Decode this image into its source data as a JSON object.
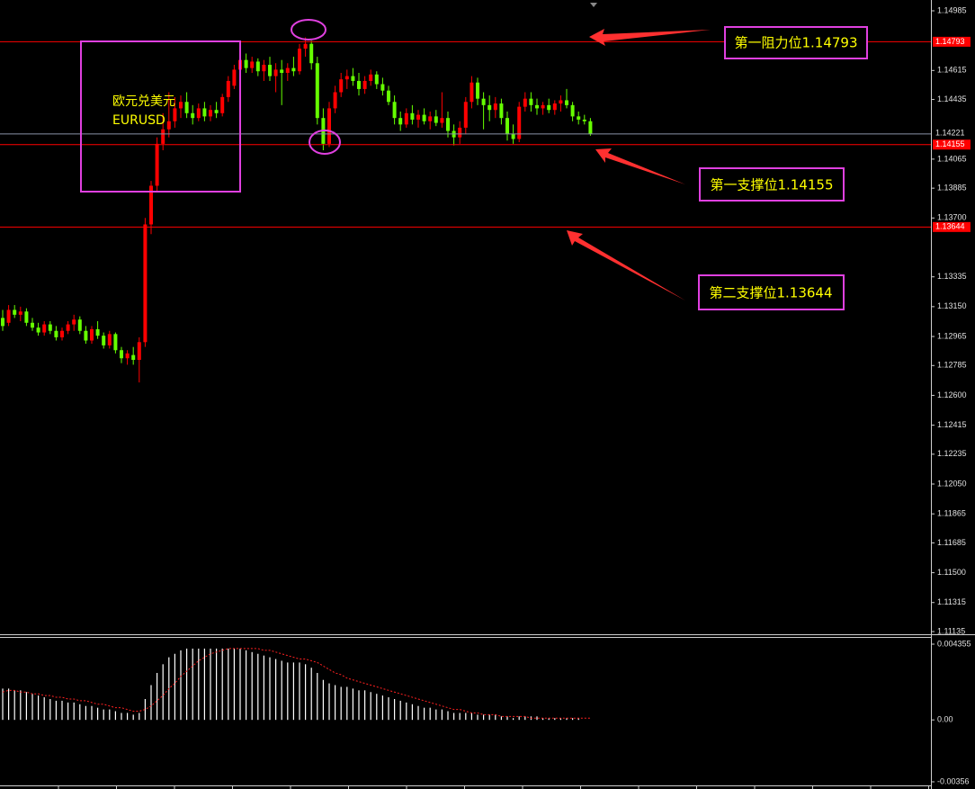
{
  "chart_data": [
    {
      "type": "candlestick",
      "title": "欧元兑美元",
      "subtitle": "EURUSD",
      "ylim": [
        1.11135,
        1.14985
      ],
      "yticks": [
        1.14985,
        1.14615,
        1.14435,
        1.14065,
        1.13885,
        {
          "value": 1.137,
          "label": "1.13700"
        },
        1.13335,
        {
          "value": 1.1315,
          "label": "1.13150"
        },
        1.12965,
        1.12785,
        {
          "value": 1.126,
          "label": "1.12600"
        },
        1.12415,
        1.12235,
        {
          "value": 1.1205,
          "label": "1.12050"
        },
        1.11865,
        1.11685,
        {
          "value": 1.115,
          "label": "1.11500"
        },
        1.11315,
        1.11135
      ],
      "up_color": "#ff0000",
      "down_color": "#66ff00",
      "candles": [
        [
          1.1308,
          1.1313,
          1.13,
          1.1303
        ],
        [
          1.1305,
          1.1316,
          1.1303,
          1.1313
        ],
        [
          1.1313,
          1.1316,
          1.1308,
          1.131
        ],
        [
          1.131,
          1.1315,
          1.1306,
          1.1312
        ],
        [
          1.1312,
          1.1314,
          1.1303,
          1.1305
        ],
        [
          1.1305,
          1.1308,
          1.13,
          1.1302
        ],
        [
          1.1302,
          1.1305,
          1.1297,
          1.1299
        ],
        [
          1.1299,
          1.1306,
          1.1297,
          1.1304
        ],
        [
          1.1304,
          1.1306,
          1.1298,
          1.13
        ],
        [
          1.13,
          1.1303,
          1.1294,
          1.1296
        ],
        [
          1.1296,
          1.1302,
          1.1294,
          1.13
        ],
        [
          1.13,
          1.1306,
          1.1298,
          1.1304
        ],
        [
          1.1304,
          1.131,
          1.13,
          1.1307
        ],
        [
          1.1307,
          1.1309,
          1.1298,
          1.13
        ],
        [
          1.13,
          1.1303,
          1.1292,
          1.1294
        ],
        [
          1.1294,
          1.1303,
          1.1292,
          1.1301
        ],
        [
          1.1301,
          1.1306,
          1.1295,
          1.1297
        ],
        [
          1.1297,
          1.1299,
          1.1289,
          1.1291
        ],
        [
          1.1291,
          1.13,
          1.1289,
          1.1298
        ],
        [
          1.1298,
          1.1299,
          1.1286,
          1.1288
        ],
        [
          1.1288,
          1.129,
          1.128,
          1.1283
        ],
        [
          1.1283,
          1.1288,
          1.1279,
          1.1286
        ],
        [
          1.1285,
          1.129,
          1.1279,
          1.1282
        ],
        [
          1.1282,
          1.1296,
          1.1268,
          1.1293
        ],
        [
          1.1293,
          1.137,
          1.129,
          1.1366
        ],
        [
          1.1366,
          1.1393,
          1.136,
          1.139
        ],
        [
          1.139,
          1.142,
          1.1386,
          1.1416
        ],
        [
          1.1416,
          1.1435,
          1.1412,
          1.1425
        ],
        [
          1.1425,
          1.1448,
          1.142,
          1.143
        ],
        [
          1.143,
          1.1445,
          1.1426,
          1.1438
        ],
        [
          1.1438,
          1.1446,
          1.1432,
          1.1442
        ],
        [
          1.1442,
          1.1448,
          1.1432,
          1.1435
        ],
        [
          1.1435,
          1.144,
          1.1428,
          1.1432
        ],
        [
          1.1432,
          1.1441,
          1.143,
          1.1438
        ],
        [
          1.1438,
          1.1442,
          1.143,
          1.1433
        ],
        [
          1.1433,
          1.144,
          1.143,
          1.1437
        ],
        [
          1.1437,
          1.1442,
          1.1432,
          1.1435
        ],
        [
          1.1435,
          1.1447,
          1.1433,
          1.1445
        ],
        [
          1.1445,
          1.1458,
          1.1442,
          1.1455
        ],
        [
          1.1452,
          1.1465,
          1.145,
          1.1462
        ],
        [
          1.1462,
          1.147,
          1.1458,
          1.1468
        ],
        [
          1.1468,
          1.1472,
          1.146,
          1.1463
        ],
        [
          1.1463,
          1.147,
          1.146,
          1.1467
        ],
        [
          1.1467,
          1.1469,
          1.1458,
          1.1461
        ],
        [
          1.1461,
          1.1468,
          1.1455,
          1.1465
        ],
        [
          1.1465,
          1.147,
          1.1455,
          1.1458
        ],
        [
          1.1458,
          1.1466,
          1.1448,
          1.1462
        ],
        [
          1.1462,
          1.1468,
          1.144,
          1.146
        ],
        [
          1.146,
          1.1466,
          1.1455,
          1.1463
        ],
        [
          1.1463,
          1.147,
          1.1458,
          1.1461
        ],
        [
          1.1461,
          1.1478,
          1.1459,
          1.1475
        ],
        [
          1.1475,
          1.1482,
          1.147,
          1.1478
        ],
        [
          1.1478,
          1.148,
          1.1462,
          1.1466
        ],
        [
          1.1466,
          1.147,
          1.1428,
          1.1432
        ],
        [
          1.1432,
          1.1438,
          1.1412,
          1.1416
        ],
        [
          1.1416,
          1.1442,
          1.1414,
          1.1438
        ],
        [
          1.1438,
          1.1452,
          1.1435,
          1.1448
        ],
        [
          1.1448,
          1.146,
          1.1445,
          1.1456
        ],
        [
          1.1456,
          1.1462,
          1.145,
          1.1458
        ],
        [
          1.1458,
          1.1463,
          1.1452,
          1.1455
        ],
        [
          1.1455,
          1.146,
          1.1446,
          1.145
        ],
        [
          1.145,
          1.1458,
          1.1447,
          1.1455
        ],
        [
          1.1455,
          1.1462,
          1.1452,
          1.1459
        ],
        [
          1.1459,
          1.1461,
          1.145,
          1.1453
        ],
        [
          1.1453,
          1.1457,
          1.1446,
          1.1449
        ],
        [
          1.1449,
          1.1452,
          1.144,
          1.1442
        ],
        [
          1.1442,
          1.1446,
          1.1428,
          1.1432
        ],
        [
          1.1432,
          1.1436,
          1.1424,
          1.1428
        ],
        [
          1.1428,
          1.1438,
          1.1426,
          1.1435
        ],
        [
          1.1435,
          1.144,
          1.1428,
          1.1431
        ],
        [
          1.1431,
          1.1437,
          1.1426,
          1.1434
        ],
        [
          1.1434,
          1.1438,
          1.1428,
          1.143
        ],
        [
          1.143,
          1.1436,
          1.1425,
          1.1433
        ],
        [
          1.1433,
          1.1437,
          1.1427,
          1.1429
        ],
        [
          1.1429,
          1.1448,
          1.1426,
          1.1432
        ],
        [
          1.1432,
          1.1436,
          1.142,
          1.1424
        ],
        [
          1.1424,
          1.1428,
          1.1415,
          1.142
        ],
        [
          1.142,
          1.143,
          1.1416,
          1.1426
        ],
        [
          1.1426,
          1.1445,
          1.1422,
          1.1442
        ],
        [
          1.1442,
          1.1458,
          1.1438,
          1.1454
        ],
        [
          1.1454,
          1.1457,
          1.144,
          1.1444
        ],
        [
          1.1444,
          1.1448,
          1.1425,
          1.144
        ],
        [
          1.144,
          1.1446,
          1.143,
          1.1437
        ],
        [
          1.1437,
          1.1445,
          1.1432,
          1.1441
        ],
        [
          1.1441,
          1.1444,
          1.1428,
          1.1432
        ],
        [
          1.1432,
          1.1436,
          1.1418,
          1.1422
        ],
        [
          1.1422,
          1.1428,
          1.1416,
          1.1419
        ],
        [
          1.1419,
          1.1442,
          1.1417,
          1.1439
        ],
        [
          1.1439,
          1.1448,
          1.1436,
          1.1444
        ],
        [
          1.1444,
          1.1448,
          1.1436,
          1.144
        ],
        [
          1.144,
          1.1444,
          1.1434,
          1.1438
        ],
        [
          1.1438,
          1.1442,
          1.1434,
          1.144
        ],
        [
          1.144,
          1.1444,
          1.1435,
          1.1437
        ],
        [
          1.1437,
          1.1443,
          1.1434,
          1.1441
        ],
        [
          1.1441,
          1.1446,
          1.1436,
          1.1443
        ],
        [
          1.1443,
          1.145,
          1.1438,
          1.144
        ],
        [
          1.144,
          1.1442,
          1.143,
          1.1433
        ],
        [
          1.1433,
          1.1436,
          1.1428,
          1.1431
        ],
        [
          1.1431,
          1.1434,
          1.1428,
          1.143
        ],
        [
          1.143,
          1.1432,
          1.1421,
          1.14221
        ]
      ],
      "levels": [
        {
          "value": 1.14793,
          "text": "第一阻力位1.14793"
        },
        {
          "value": 1.14155,
          "text": "第一支撑位1.14155"
        },
        {
          "value": 1.13644,
          "text": "第二支撑位1.13644"
        }
      ],
      "level_color": "#ff0000",
      "current_price": 1.14221,
      "current_color": "#8a93a8"
    },
    {
      "type": "macd",
      "ylim": [
        -0.00356,
        0.004355
      ],
      "yticks": [
        0.004355,
        {
          "value": 0,
          "label": "0.00"
        },
        -0.00356
      ],
      "histogram_color": "#ffffff",
      "signal_color": "#ff2020",
      "histogram": [
        0.0018,
        0.0018,
        0.0017,
        0.0017,
        0.0016,
        0.0015,
        0.0014,
        0.0013,
        0.0012,
        0.0011,
        0.0011,
        0.001,
        0.001,
        0.0009,
        0.0008,
        0.0008,
        0.0007,
        0.0006,
        0.0006,
        0.0005,
        0.0004,
        0.0004,
        0.0003,
        0.0004,
        0.0012,
        0.002,
        0.0027,
        0.0032,
        0.0036,
        0.0038,
        0.004,
        0.0041,
        0.0041,
        0.0041,
        0.0041,
        0.0041,
        0.0041,
        0.0041,
        0.0041,
        0.0041,
        0.0041,
        0.004,
        0.0039,
        0.0038,
        0.0037,
        0.0036,
        0.0035,
        0.0034,
        0.0033,
        0.0033,
        0.0033,
        0.0032,
        0.003,
        0.0027,
        0.0023,
        0.0021,
        0.002,
        0.0019,
        0.0019,
        0.0018,
        0.0017,
        0.0017,
        0.0016,
        0.0015,
        0.0014,
        0.0013,
        0.0012,
        0.0011,
        0.001,
        0.0009,
        0.0008,
        0.0007,
        0.0007,
        0.0006,
        0.0006,
        0.0005,
        0.0004,
        0.0004,
        0.0004,
        0.0004,
        0.0003,
        0.0003,
        0.0003,
        0.0003,
        0.0002,
        0.0002,
        0.0001,
        0.0002,
        0.0002,
        0.0002,
        0.0002,
        0.0001,
        0.0001,
        0.0001,
        0.0001,
        0.0001,
        0.0001,
        0.0001,
        0,
        0
      ],
      "signal": [
        0.0016,
        0.0017,
        0.0017,
        0.0016,
        0.0016,
        0.0015,
        0.0015,
        0.0014,
        0.0014,
        0.0013,
        0.0013,
        0.0012,
        0.0012,
        0.0011,
        0.0011,
        0.001,
        0.0009,
        0.0009,
        0.0008,
        0.0007,
        0.0007,
        0.0006,
        0.0005,
        0.0005,
        0.0006,
        0.0008,
        0.0011,
        0.0014,
        0.0018,
        0.0021,
        0.0025,
        0.0028,
        0.0031,
        0.0034,
        0.0036,
        0.0038,
        0.0039,
        0.004,
        0.0041,
        0.0041,
        0.0041,
        0.0041,
        0.0041,
        0.0041,
        0.004,
        0.004,
        0.0039,
        0.0038,
        0.0037,
        0.0036,
        0.0035,
        0.0035,
        0.0034,
        0.0033,
        0.0031,
        0.0029,
        0.0027,
        0.0026,
        0.0024,
        0.0023,
        0.0022,
        0.0021,
        0.002,
        0.0019,
        0.0018,
        0.0017,
        0.0016,
        0.0015,
        0.0014,
        0.0013,
        0.0012,
        0.0011,
        0.001,
        0.0009,
        0.0008,
        0.0007,
        0.0006,
        0.0006,
        0.0005,
        0.0004,
        0.0004,
        0.0003,
        0.0003,
        0.0003,
        0.0002,
        0.0002,
        0.0002,
        0.0002,
        0.0002,
        0.0001,
        0.0001,
        0.0001,
        0.0001,
        0.0001,
        0.0001,
        0.0001,
        0.0001,
        0.0001,
        0.0001,
        0.0001
      ]
    }
  ]
}
